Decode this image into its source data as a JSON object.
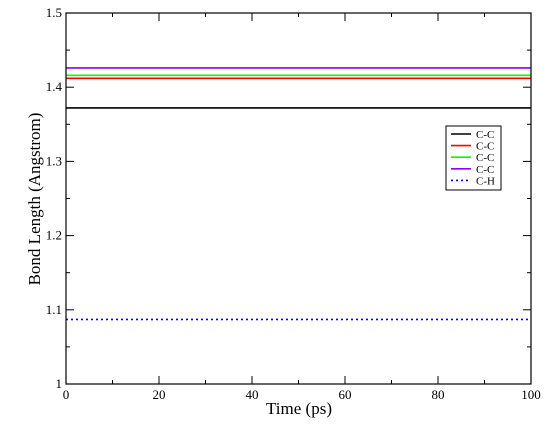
{
  "chart_data": {
    "type": "line",
    "title": "",
    "xlabel": "Time (ps)",
    "ylabel": "Bond Length (Angstrom)",
    "xlim": [
      0,
      100
    ],
    "ylim": [
      1,
      1.5
    ],
    "x_ticks": [
      0,
      20,
      40,
      60,
      80,
      100
    ],
    "x_tick_labels": [
      "0",
      "20",
      "40",
      "60",
      "80",
      "100"
    ],
    "y_ticks": [
      1,
      1.1,
      1.2,
      1.3,
      1.4,
      1.5
    ],
    "y_tick_labels": [
      "1",
      "1.1",
      "1.2",
      "1.3",
      "1.4",
      "1.5"
    ],
    "grid": false,
    "legend_position": "right",
    "x": [
      0,
      100
    ],
    "series": [
      {
        "name": "C-C",
        "values": [
          1.372,
          1.372
        ],
        "color": "#000000",
        "dash": "solid"
      },
      {
        "name": "C-C",
        "values": [
          1.412,
          1.412
        ],
        "color": "#ff0000",
        "dash": "solid"
      },
      {
        "name": "C-C",
        "values": [
          1.416,
          1.416
        ],
        "color": "#00ff00",
        "dash": "solid"
      },
      {
        "name": "C-C",
        "values": [
          1.426,
          1.426
        ],
        "color": "#8b00ff",
        "dash": "solid"
      },
      {
        "name": "C-H",
        "values": [
          1.087,
          1.087
        ],
        "color": "#0000ff",
        "dash": "dotted"
      }
    ]
  }
}
